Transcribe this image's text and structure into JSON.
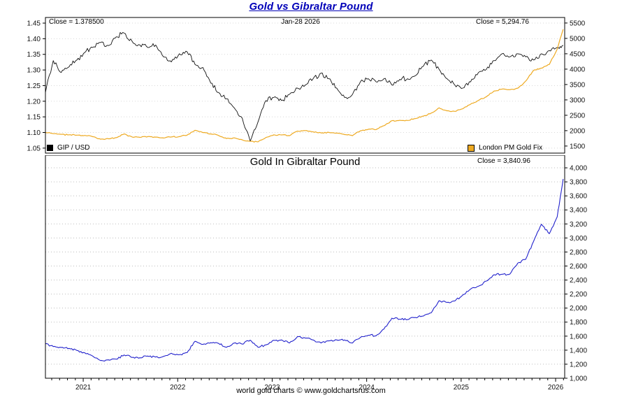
{
  "page": {
    "title": "Gold vs Gibraltar Pound",
    "footer": "world gold charts © www.goldchartsrus.com"
  },
  "top_panel": {
    "close_left": "Close = 1.378500",
    "date_label": "Jan-28  2026",
    "close_right": "Close = 5,294.76",
    "legend_left": "GIP / USD",
    "legend_right": "London PM Gold Fix"
  },
  "bottom_panel": {
    "title": "Gold In Gibraltar Pound",
    "close": "Close = 3,840.96"
  },
  "colors": {
    "title": "#0000b8",
    "gip_usd_line": "#111111",
    "gold_fix_line": "#eeaa22",
    "gold_gip_line": "#2222cc",
    "grid_top": "#d8d8d8",
    "grid_bottom": "#bdbdbd"
  },
  "chart_data": [
    {
      "type": "line",
      "title": "Gold vs Gibraltar Pound",
      "date": "Jan-28 2026",
      "x_range": [
        2020.6,
        2026.096
      ],
      "x_label_ticks": [
        2021,
        2022,
        2023,
        2024,
        2025,
        2026
      ],
      "x": [
        2020.6,
        2020.683,
        2020.767,
        2020.85,
        2020.933,
        2021.017,
        2021.1,
        2021.183,
        2021.267,
        2021.35,
        2021.433,
        2021.517,
        2021.6,
        2021.683,
        2021.767,
        2021.85,
        2021.933,
        2022.017,
        2022.1,
        2022.183,
        2022.267,
        2022.35,
        2022.433,
        2022.517,
        2022.6,
        2022.683,
        2022.767,
        2022.85,
        2022.933,
        2023.017,
        2023.1,
        2023.183,
        2023.267,
        2023.35,
        2023.433,
        2023.517,
        2023.6,
        2023.683,
        2023.767,
        2023.85,
        2023.933,
        2024.017,
        2024.1,
        2024.183,
        2024.267,
        2024.35,
        2024.433,
        2024.517,
        2024.6,
        2024.683,
        2024.767,
        2024.85,
        2024.933,
        2025.017,
        2025.1,
        2025.183,
        2025.267,
        2025.35,
        2025.433,
        2025.517,
        2025.6,
        2025.683,
        2025.767,
        2025.85,
        2025.933,
        2026.017,
        2026.08
      ],
      "left_axis": {
        "range": [
          1.034,
          1.468
        ],
        "tick_values": [
          1.45,
          1.4,
          1.35,
          1.3,
          1.25,
          1.2,
          1.15,
          1.1,
          1.05
        ],
        "tick_labels": [
          "1.45",
          "1.40",
          "1.35",
          "1.30",
          "1.25",
          "1.20",
          "1.15",
          "1.10",
          "1.05"
        ]
      },
      "right_axis": {
        "range": [
          1270,
          5680
        ],
        "tick_values": [
          5500,
          5000,
          4500,
          4000,
          3500,
          3000,
          2500,
          2000,
          1500
        ],
        "tick_labels": [
          "5500",
          "5000",
          "4500",
          "4000",
          "3500",
          "3000",
          "2500",
          "2000",
          "1500"
        ]
      },
      "grid_axis": "left",
      "series": [
        {
          "name": "GIP / USD",
          "axis": "left",
          "color": "#111111",
          "width": 0.9,
          "jitter": 0.009,
          "close": 1.3785,
          "values": [
            1.228,
            1.33,
            1.292,
            1.31,
            1.332,
            1.356,
            1.372,
            1.388,
            1.378,
            1.406,
            1.418,
            1.392,
            1.38,
            1.372,
            1.38,
            1.342,
            1.326,
            1.352,
            1.358,
            1.318,
            1.308,
            1.258,
            1.228,
            1.208,
            1.178,
            1.146,
            1.072,
            1.134,
            1.202,
            1.212,
            1.202,
            1.222,
            1.242,
            1.252,
            1.272,
            1.29,
            1.272,
            1.242,
            1.212,
            1.222,
            1.262,
            1.272,
            1.262,
            1.272,
            1.252,
            1.27,
            1.272,
            1.282,
            1.312,
            1.332,
            1.302,
            1.272,
            1.252,
            1.242,
            1.262,
            1.292,
            1.302,
            1.33,
            1.352,
            1.342,
            1.352,
            1.342,
            1.332,
            1.352,
            1.362,
            1.372,
            1.3785
          ]
        },
        {
          "name": "London PM Gold Fix",
          "axis": "right",
          "color": "#eeaa22",
          "width": 1.2,
          "jitter": 22,
          "close": 5294.76,
          "values": [
            1940,
            1905,
            1880,
            1865,
            1855,
            1845,
            1805,
            1722,
            1736,
            1772,
            1892,
            1796,
            1782,
            1806,
            1790,
            1762,
            1796,
            1806,
            1856,
            2012,
            1936,
            1896,
            1842,
            1742,
            1766,
            1702,
            1652,
            1636,
            1776,
            1866,
            1862,
            1836,
            1986,
            2002,
            1962,
            1926,
            1946,
            1922,
            1872,
            1836,
            1996,
            2046,
            2036,
            2162,
            2322,
            2336,
            2332,
            2392,
            2472,
            2572,
            2742,
            2646,
            2626,
            2712,
            2862,
            2986,
            3102,
            3292,
            3352,
            3332,
            3382,
            3612,
            3962,
            4032,
            4152,
            4652,
            5294.76
          ]
        }
      ]
    },
    {
      "type": "line",
      "title": "Gold In Gibraltar Pound",
      "x_range": [
        2020.6,
        2026.096
      ],
      "x_label_ticks": [
        2021,
        2022,
        2023,
        2024,
        2025,
        2026
      ],
      "x": [
        2020.6,
        2020.683,
        2020.767,
        2020.85,
        2020.933,
        2021.017,
        2021.1,
        2021.183,
        2021.267,
        2021.35,
        2021.433,
        2021.517,
        2021.6,
        2021.683,
        2021.767,
        2021.85,
        2021.933,
        2022.017,
        2022.1,
        2022.183,
        2022.267,
        2022.35,
        2022.433,
        2022.517,
        2022.6,
        2022.683,
        2022.767,
        2022.85,
        2022.933,
        2023.017,
        2023.1,
        2023.183,
        2023.267,
        2023.35,
        2023.433,
        2023.517,
        2023.6,
        2023.683,
        2023.767,
        2023.85,
        2023.933,
        2024.017,
        2024.1,
        2024.183,
        2024.267,
        2024.35,
        2024.433,
        2024.517,
        2024.6,
        2024.683,
        2024.767,
        2024.85,
        2024.933,
        2025.017,
        2025.1,
        2025.183,
        2025.267,
        2025.35,
        2025.433,
        2025.517,
        2025.6,
        2025.683,
        2025.767,
        2025.85,
        2025.933,
        2026.017,
        2026.08
      ],
      "right_axis": {
        "range": [
          1000,
          4180
        ],
        "tick_values": [
          4000,
          3800,
          3600,
          3400,
          3200,
          3000,
          2800,
          2600,
          2400,
          2200,
          2000,
          1800,
          1600,
          1400,
          1200,
          1000
        ],
        "tick_labels": [
          "4,000",
          "3,800",
          "3,600",
          "3,400",
          "3,200",
          "3,000",
          "2,800",
          "2,600",
          "2,400",
          "2,200",
          "2,000",
          "1,800",
          "1,600",
          "1,400",
          "1,200",
          "1,000"
        ]
      },
      "grid_axis": "right",
      "series": [
        {
          "name": "Gold In Gibraltar Pound",
          "axis": "right",
          "color": "#2222cc",
          "width": 1.1,
          "jitter": 16,
          "close": 3840.96,
          "values": [
            1492,
            1452,
            1440,
            1426,
            1396,
            1362,
            1316,
            1252,
            1262,
            1272,
            1332,
            1296,
            1292,
            1316,
            1302,
            1312,
            1356,
            1336,
            1366,
            1526,
            1482,
            1506,
            1496,
            1442,
            1502,
            1486,
            1542,
            1442,
            1476,
            1542,
            1546,
            1502,
            1592,
            1572,
            1546,
            1502,
            1532,
            1546,
            1546,
            1502,
            1582,
            1612,
            1606,
            1702,
            1856,
            1842,
            1836,
            1866,
            1886,
            1932,
            2106,
            2082,
            2102,
            2186,
            2272,
            2312,
            2386,
            2476,
            2482,
            2486,
            2642,
            2696,
            2952,
            3196,
            3062,
            3302,
            3840.96
          ]
        }
      ]
    }
  ]
}
